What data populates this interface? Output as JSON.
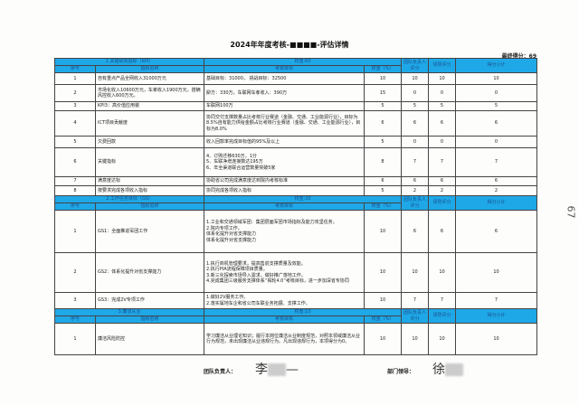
{
  "title": "2024年年度考核-■■■■-评估详情",
  "final_score": "最终得分：69",
  "page_number": "67",
  "columns": {
    "no": "序号",
    "name": "指标名称",
    "target": "考核目标",
    "weight": "权重（%）",
    "team_score": "团队负责人评分",
    "leader_score": "领导评分",
    "subtotal": "得分小计"
  },
  "sections": [
    {
      "title": "1.关键绩效指标（KPI）",
      "weight": "权重:60",
      "rows": [
        {
          "no": "1",
          "name": "自有重点产品全网收入31000万元",
          "target": "基础目标：31000，  挑战目标：32500",
          "weight": "10",
          "team": "10",
          "leader": "10",
          "subtotal": "10"
        },
        {
          "no": "2",
          "name": "市场化收入10600万元，车孝收入1900万元，搭辆风控收入600万元。",
          "target": "擗方：330万，车联网车孝收入：390万",
          "weight": "15",
          "team": "0",
          "leader": "0",
          "subtotal": "0"
        },
        {
          "no": "3",
          "name": "KPI3：高价值应用装",
          "target": "车联网100万",
          "weight": "5",
          "team": "5",
          "leader": "5",
          "subtotal": "5"
        },
        {
          "no": "4",
          "name": "ICT项目贡献度",
          "target": "协同交付支撑数量占比考核行业赛道（金融、交通、工业能源行业），目标为8.5%自有能力供给金额占比考核行业赛道（金融、交通、工业能源行业），目标为8.0%",
          "weight": "6",
          "team": "6",
          "leader": "6",
          "subtotal": "6"
        },
        {
          "no": "5",
          "name": "欠费回款",
          "target": "收入回款率完成目标值的95%及以上",
          "weight": "5",
          "team": "0",
          "leader": "0",
          "subtotal": "0"
        },
        {
          "no": "6",
          "name": "关键指标",
          "target": "4、订购迁移630万，1分\n5、车联净增连接数达195万\n6、年全渠道联合运营数量突破5家",
          "weight": "8",
          "team": "7",
          "leader": "7",
          "subtotal": "7"
        },
        {
          "no": "7",
          "name": "满意度达标",
          "target": "协助省公司完成满意度达到院内考核标准",
          "weight": "6",
          "team": "6",
          "leader": "6",
          "subtotal": "6"
        },
        {
          "no": "8",
          "name": "按要求完成各项收入指标",
          "target": "协同完成各项收入指标",
          "weight": "5",
          "team": "2",
          "leader": "2",
          "subtotal": "2"
        }
      ]
    },
    {
      "title": "2.工作任务目标（GS）",
      "weight": "权重:30",
      "rows": [
        {
          "no": "1",
          "name": "GS1：全面推进军团工作",
          "target": "1.工业和交通领域军团：集团层面军团市场指标及能力攻坚任务。\n2.院内专项工作。\n体系化提升对省支撑能力\n体系化提升对省支撑能力",
          "weight": "10",
          "team": "6",
          "leader": "6",
          "subtotal": "6"
        },
        {
          "no": "2",
          "name": "GS2：体系化提升对省支撑能力",
          "target": "1.执行商机管理要求，提高售前支撑质量及效能。\n2.执行PIA流程保障项目质量。\n3.新三化探索市场导入需求，做好推广落地工作。\n4.完成集团三级服务支撑体系“揭轮4.0”考核目标，进一步加深省专协同",
          "weight": "10",
          "team": "10",
          "leader": "10",
          "subtotal": "10"
        },
        {
          "no": "3",
          "name": "GS3：完成2V专项工作",
          "target": "1.做好2V服务工作。\n2.落实属地车企和省公司车联业务拓展、支撑工作。",
          "weight": "10",
          "team": "7",
          "leader": "7",
          "subtotal": "7"
        }
      ]
    },
    {
      "title": "3.廉洁从业",
      "weight": "权重:10",
      "rows": [
        {
          "no": "1",
          "name": "廉洁风险防控",
          "target": "学习廉洁从业理论知识；履行本岗位廉洁从业制度规范，对照本领域廉洁从业行为规范，未出现廉洁从业违规行为。凡出现违规行为，本项得分为0。",
          "weight": "10",
          "team": "10",
          "leader": "10",
          "subtotal": "10"
        }
      ]
    }
  ],
  "signatures": {
    "team_leader_label": "团队负责人：",
    "team_leader_sign": "李",
    "dept_leader_label": "部门领导：",
    "dept_leader_sign": "徐"
  }
}
